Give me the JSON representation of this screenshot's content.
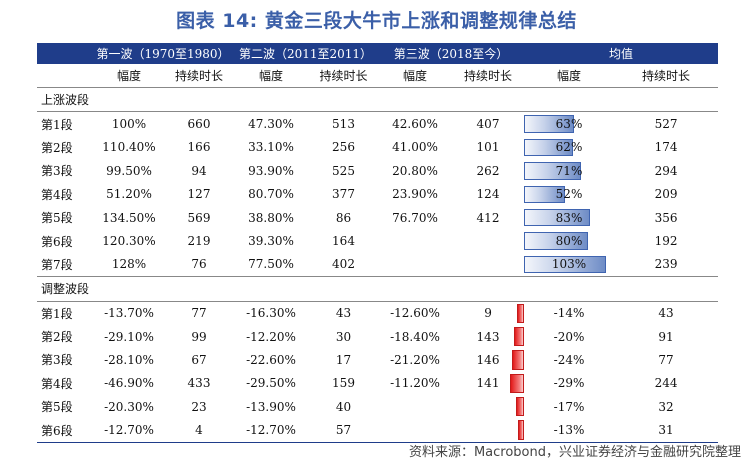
{
  "title": "图表 14: 黄金三段大牛市上涨和调整规律总结",
  "columns": {
    "wave1": "第一波（1970至1980）",
    "wave2": "第二波（2011至2011）",
    "wave3": "第三波（2018至今）",
    "avg": "均值",
    "amplitude": "幅度",
    "duration": "持续时长"
  },
  "sections": {
    "up": "上涨波段",
    "down": "调整波段"
  },
  "up_rows": [
    {
      "label": "第1段",
      "w1_amp": "100%",
      "w1_dur": "660",
      "w2_amp": "47.30%",
      "w2_dur": "513",
      "w3_amp": "42.60%",
      "w3_dur": "407",
      "avg_amp": "63%",
      "avg_amp_value": 63,
      "avg_dur": "527"
    },
    {
      "label": "第2段",
      "w1_amp": "110.40%",
      "w1_dur": "166",
      "w2_amp": "33.10%",
      "w2_dur": "256",
      "w3_amp": "41.00%",
      "w3_dur": "101",
      "avg_amp": "62%",
      "avg_amp_value": 62,
      "avg_dur": "174"
    },
    {
      "label": "第3段",
      "w1_amp": "99.50%",
      "w1_dur": "94",
      "w2_amp": "93.90%",
      "w2_dur": "525",
      "w3_amp": "20.80%",
      "w3_dur": "262",
      "avg_amp": "71%",
      "avg_amp_value": 71,
      "avg_dur": "294"
    },
    {
      "label": "第4段",
      "w1_amp": "51.20%",
      "w1_dur": "127",
      "w2_amp": "80.70%",
      "w2_dur": "377",
      "w3_amp": "23.90%",
      "w3_dur": "124",
      "avg_amp": "52%",
      "avg_amp_value": 52,
      "avg_dur": "209"
    },
    {
      "label": "第5段",
      "w1_amp": "134.50%",
      "w1_dur": "569",
      "w2_amp": "38.80%",
      "w2_dur": "86",
      "w3_amp": "76.70%",
      "w3_dur": "412",
      "avg_amp": "83%",
      "avg_amp_value": 83,
      "avg_dur": "356"
    },
    {
      "label": "第6段",
      "w1_amp": "120.30%",
      "w1_dur": "219",
      "w2_amp": "39.30%",
      "w2_dur": "164",
      "w3_amp": "",
      "w3_dur": "",
      "avg_amp": "80%",
      "avg_amp_value": 80,
      "avg_dur": "192"
    },
    {
      "label": "第7段",
      "w1_amp": "128%",
      "w1_dur": "76",
      "w2_amp": "77.50%",
      "w2_dur": "402",
      "w3_amp": "",
      "w3_dur": "",
      "avg_amp": "103%",
      "avg_amp_value": 103,
      "avg_dur": "239"
    }
  ],
  "down_rows": [
    {
      "label": "第1段",
      "w1_amp": "-13.70%",
      "w1_dur": "77",
      "w2_amp": "-16.30%",
      "w2_dur": "43",
      "w3_amp": "-12.60%",
      "w3_dur": "9",
      "avg_amp": "-14%",
      "avg_amp_value": -14,
      "avg_dur": "43"
    },
    {
      "label": "第2段",
      "w1_amp": "-29.10%",
      "w1_dur": "99",
      "w2_amp": "-12.20%",
      "w2_dur": "30",
      "w3_amp": "-18.40%",
      "w3_dur": "143",
      "avg_amp": "-20%",
      "avg_amp_value": -20,
      "avg_dur": "91"
    },
    {
      "label": "第3段",
      "w1_amp": "-28.10%",
      "w1_dur": "67",
      "w2_amp": "-22.60%",
      "w2_dur": "17",
      "w3_amp": "-21.20%",
      "w3_dur": "146",
      "avg_amp": "-24%",
      "avg_amp_value": -24,
      "avg_dur": "77"
    },
    {
      "label": "第4段",
      "w1_amp": "-46.90%",
      "w1_dur": "433",
      "w2_amp": "-29.50%",
      "w2_dur": "159",
      "w3_amp": "-11.20%",
      "w3_dur": "141",
      "avg_amp": "-29%",
      "avg_amp_value": -29,
      "avg_dur": "244"
    },
    {
      "label": "第5段",
      "w1_amp": "-20.30%",
      "w1_dur": "23",
      "w2_amp": "-13.90%",
      "w2_dur": "40",
      "w3_amp": "",
      "w3_dur": "",
      "avg_amp": "-17%",
      "avg_amp_value": -17,
      "avg_dur": "32"
    },
    {
      "label": "第6段",
      "w1_amp": "-12.70%",
      "w1_dur": "4",
      "w2_amp": "-12.70%",
      "w2_dur": "57",
      "w3_amp": "",
      "w3_dur": "",
      "avg_amp": "-13%",
      "avg_amp_value": -13,
      "avg_dur": "31"
    }
  ],
  "source": "资料来源：Macrobond，兴业证券经济与金融研究院整理",
  "colors": {
    "header_bg": "#1f3d8a",
    "title": "#3b5fa8",
    "positive_bar": "#6e8cc6",
    "negative_bar": "#e21a1a"
  }
}
